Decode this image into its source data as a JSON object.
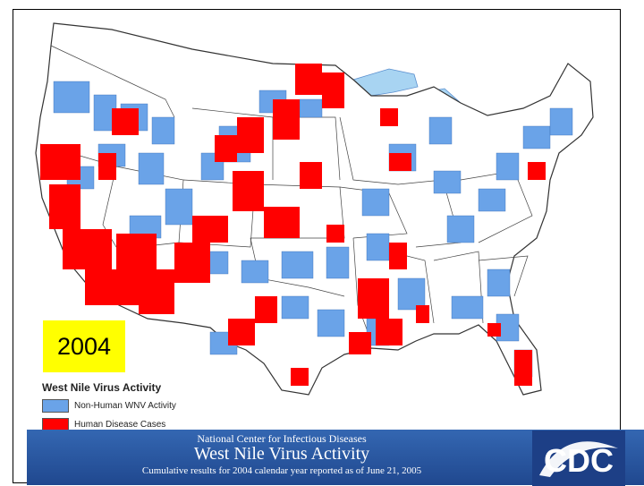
{
  "year": "2004",
  "legend": {
    "title": "West Nile Virus Activity",
    "items": [
      {
        "label": "Non-Human WNV Activity",
        "color": "#6aa3e8"
      },
      {
        "label": "Human Disease Cases",
        "color": "#ff0000"
      }
    ]
  },
  "banner": {
    "line1": "National Center for Infectious Diseases",
    "line2": "West Nile Virus Activity",
    "line3": "Cumulative results for 2004 calendar year reported as of June 21, 2005"
  },
  "logo": {
    "text": "CDC"
  },
  "colors": {
    "water": "#a8d4f2",
    "land": "#ffffff",
    "nonhuman": "#6aa3e8",
    "human": "#ff0000",
    "banner": "#2d5aa5"
  }
}
